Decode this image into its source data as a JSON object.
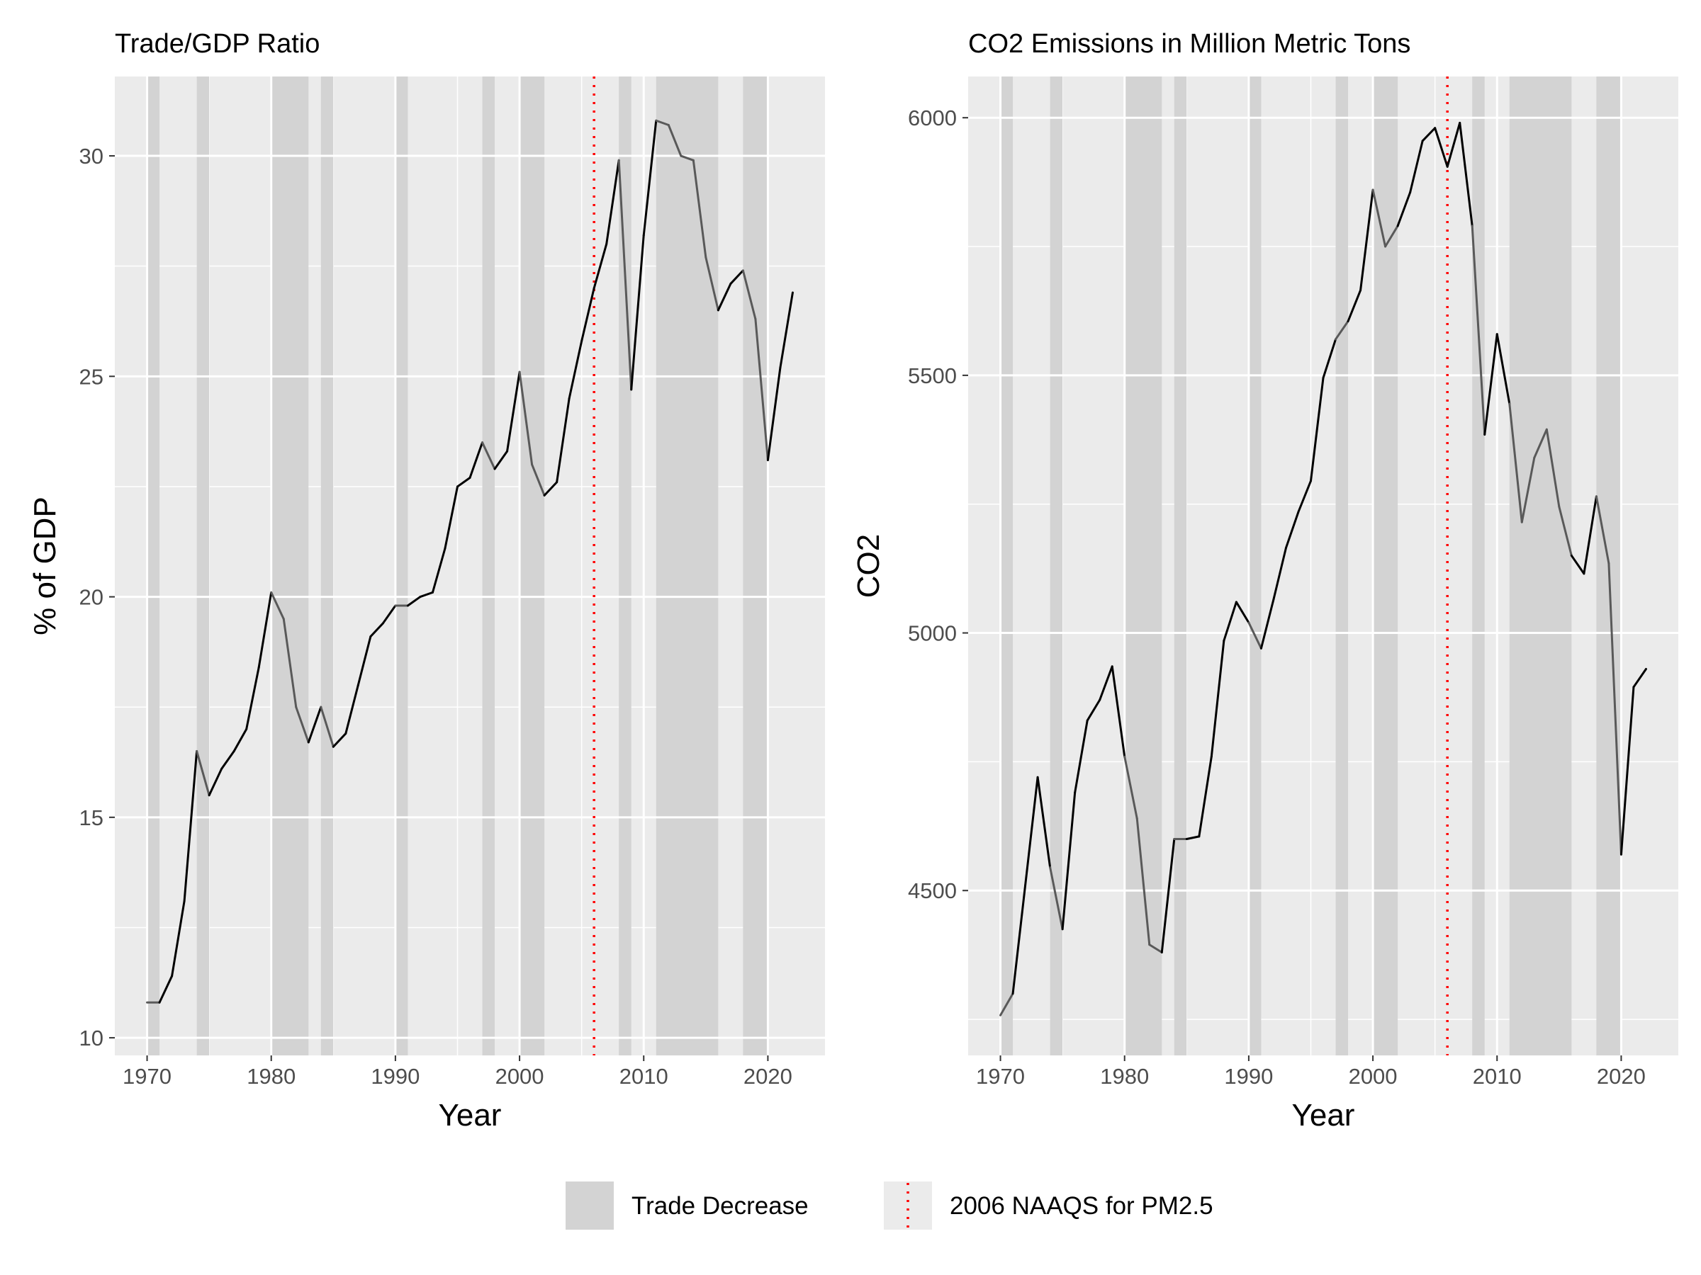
{
  "chart_data": [
    {
      "type": "line",
      "title": "Trade/GDP Ratio",
      "xlabel": "Year",
      "ylabel": "% of GDP",
      "xlim": [
        1967.4,
        1974.6
      ],
      "xlim_note": "",
      "x_range": [
        1967.4,
        2024.6
      ],
      "y_range": [
        9.6,
        31.8
      ],
      "x_ticks": [
        1970,
        1980,
        1990,
        2000,
        2010,
        2020
      ],
      "y_ticks": [
        10,
        15,
        20,
        25,
        30
      ],
      "grid": true,
      "vline_x": 2006,
      "shaded_periods": [
        [
          1970,
          1971
        ],
        [
          1974,
          1975
        ],
        [
          1980,
          1983
        ],
        [
          1984,
          1985
        ],
        [
          1990,
          1991
        ],
        [
          1997,
          1998
        ],
        [
          2000,
          2002
        ],
        [
          2008,
          2009
        ],
        [
          2011,
          2016
        ],
        [
          2018,
          2020
        ]
      ],
      "series": [
        {
          "x": [
            1970,
            1971,
            1972,
            1973,
            1974,
            1975,
            1976,
            1977,
            1978,
            1979,
            1980,
            1981,
            1982,
            1983,
            1984,
            1985,
            1986,
            1987,
            1988,
            1989,
            1990,
            1991,
            1992,
            1993,
            1994,
            1995,
            1996,
            1997,
            1998,
            1999,
            2000,
            2001,
            2002,
            2003,
            2004,
            2005,
            2006,
            2007,
            2008,
            2009,
            2010,
            2011,
            2012,
            2013,
            2014,
            2015,
            2016,
            2017,
            2018,
            2019,
            2020,
            2021,
            2022
          ],
          "values": [
            10.8,
            10.8,
            11.4,
            13.1,
            16.5,
            15.5,
            16.1,
            16.5,
            17.0,
            18.4,
            20.1,
            19.5,
            17.5,
            16.7,
            17.5,
            16.6,
            16.9,
            18.0,
            19.1,
            19.4,
            19.8,
            19.8,
            20.0,
            20.1,
            21.1,
            22.5,
            22.7,
            23.5,
            22.9,
            23.3,
            25.1,
            23.0,
            22.3,
            22.6,
            24.5,
            25.8,
            27.0,
            28.0,
            29.9,
            24.7,
            28.2,
            30.8,
            30.7,
            30.0,
            29.9,
            27.7,
            26.5,
            27.1,
            27.4,
            26.3,
            23.1,
            25.2,
            26.9
          ]
        }
      ]
    },
    {
      "type": "line",
      "title": "CO2 Emissions in Million Metric Tons",
      "xlabel": "Year",
      "ylabel": "CO2",
      "x_range": [
        1967.4,
        2024.6
      ],
      "y_range": [
        4180,
        6080
      ],
      "x_ticks": [
        1970,
        1980,
        1990,
        2000,
        2010,
        2020
      ],
      "y_ticks": [
        4500,
        5000,
        5500,
        6000
      ],
      "grid": true,
      "vline_x": 2006,
      "shaded_periods": [
        [
          1970,
          1971
        ],
        [
          1974,
          1975
        ],
        [
          1980,
          1983
        ],
        [
          1984,
          1985
        ],
        [
          1990,
          1991
        ],
        [
          1997,
          1998
        ],
        [
          2000,
          2002
        ],
        [
          2008,
          2009
        ],
        [
          2011,
          2016
        ],
        [
          2018,
          2020
        ]
      ],
      "series": [
        {
          "x": [
            1970,
            1971,
            1972,
            1973,
            1974,
            1975,
            1976,
            1977,
            1978,
            1979,
            1980,
            1981,
            1982,
            1983,
            1984,
            1985,
            1986,
            1987,
            1988,
            1989,
            1990,
            1991,
            1992,
            1993,
            1994,
            1995,
            1996,
            1997,
            1998,
            1999,
            2000,
            2001,
            2002,
            2003,
            2004,
            2005,
            2006,
            2007,
            2008,
            2009,
            2010,
            2011,
            2012,
            2013,
            2014,
            2015,
            2016,
            2017,
            2018,
            2019,
            2020,
            2021,
            2022
          ],
          "values": [
            4258,
            4300,
            4510,
            4720,
            4545,
            4425,
            4690,
            4830,
            4870,
            4935,
            4760,
            4640,
            4395,
            4380,
            4600,
            4600,
            4605,
            4760,
            4985,
            5060,
            5020,
            4970,
            5065,
            5165,
            5235,
            5295,
            5495,
            5570,
            5605,
            5665,
            5860,
            5750,
            5790,
            5855,
            5955,
            5980,
            5905,
            5990,
            5790,
            5385,
            5580,
            5445,
            5215,
            5340,
            5395,
            5245,
            5150,
            5115,
            5265,
            5135,
            4570,
            4895,
            4930
          ]
        }
      ]
    }
  ],
  "legend": {
    "shade_label": "Trade Decrease",
    "line_label": "2006 NAAQS for PM2.5"
  },
  "colors": {
    "panel": "#ebebeb",
    "grid": "#ffffff",
    "shade": "#d3d3d3",
    "line": "#000000",
    "line_in_shade": "#595959",
    "vline": "#ff0000",
    "tick_text": "#4d4d4d"
  }
}
